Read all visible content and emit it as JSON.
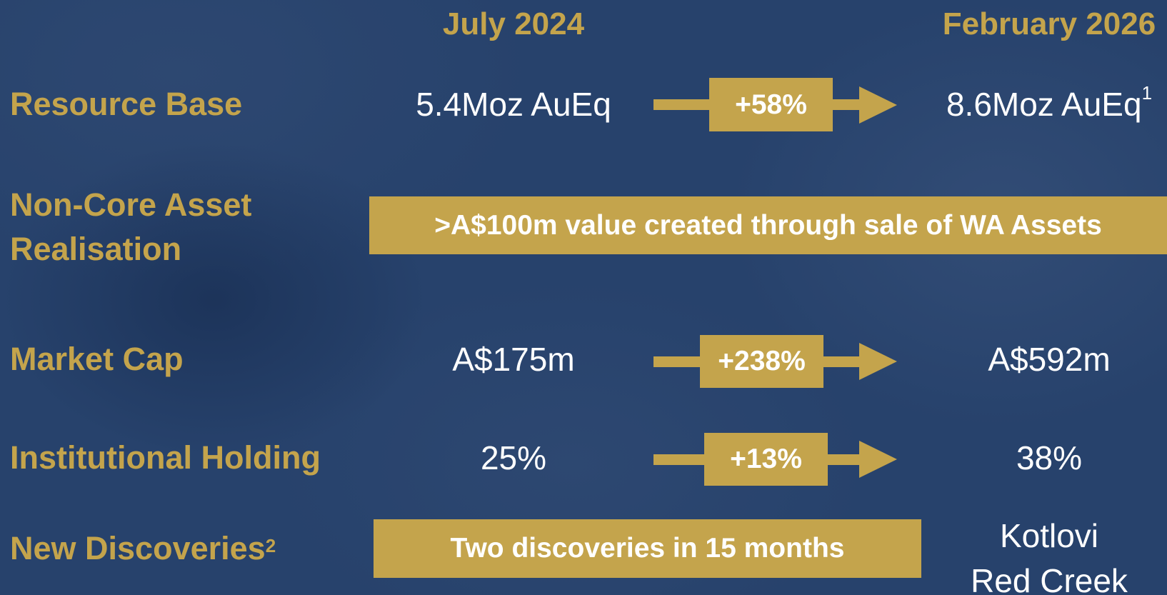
{
  "headers": {
    "from": "July 2024",
    "to": "February 2026"
  },
  "rows": [
    {
      "label": "Resource Base",
      "from": "5.4Moz AuEq",
      "change": "+58%",
      "to": "8.6Moz AuEq",
      "to_note": "1"
    },
    {
      "label": "Non-Core Asset Realisation",
      "banner": ">A$100m value created through sale of WA Assets"
    },
    {
      "label": "Market Cap",
      "from": "A$175m",
      "change": "+238%",
      "to": "A$592m"
    },
    {
      "label": "Institutional Holding",
      "from": "25%",
      "change": "+13%",
      "to": "38%"
    },
    {
      "label": "New Discoveries",
      "label_note": "2",
      "banner": "Two discoveries in 15 months",
      "to_lines": [
        "Kotlovi",
        "Red Creek"
      ]
    }
  ]
}
